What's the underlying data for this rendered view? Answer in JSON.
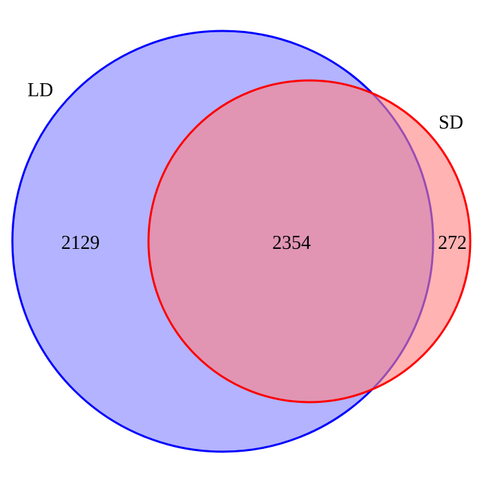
{
  "venn": {
    "sets": [
      {
        "label": "LD",
        "stroke_color": "#0000ff",
        "fill_color": "#8080ff",
        "fill_opacity": 0.6
      },
      {
        "label": "SD",
        "stroke_color": "#ff0000",
        "fill_color": "#ff8080",
        "fill_opacity": 0.6
      }
    ],
    "regions": {
      "LD_only": "2129",
      "LD_and_SD": "2354",
      "SD_only": "272"
    }
  }
}
